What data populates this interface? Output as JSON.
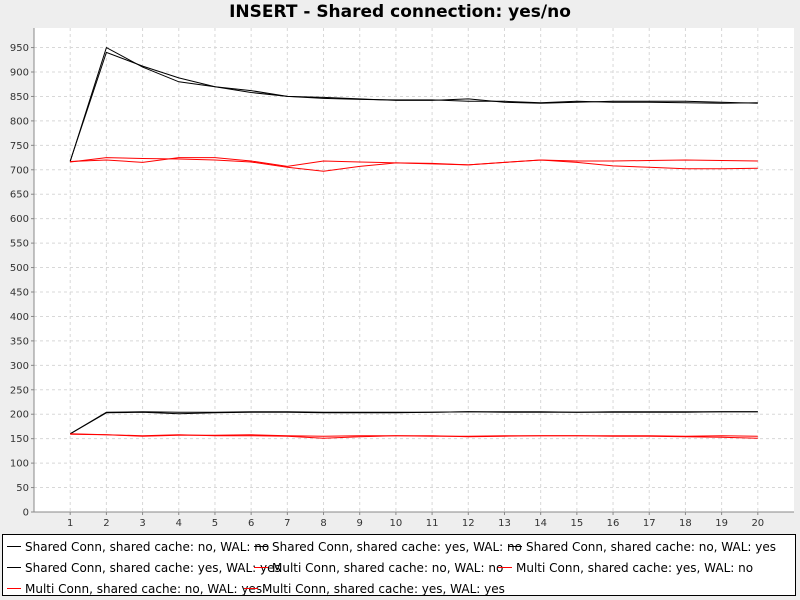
{
  "chart_data": {
    "type": "line",
    "title": "INSERT - Shared connection: yes/no",
    "xlabel": "",
    "ylabel": "",
    "x": [
      1,
      2,
      3,
      4,
      5,
      6,
      7,
      8,
      9,
      10,
      11,
      12,
      13,
      14,
      15,
      16,
      17,
      18,
      19,
      20
    ],
    "xlim": [
      0,
      21
    ],
    "ylim": [
      0,
      990
    ],
    "yticks": [
      0,
      50,
      100,
      150,
      200,
      250,
      300,
      350,
      400,
      450,
      500,
      550,
      600,
      650,
      700,
      750,
      800,
      850,
      900,
      950
    ],
    "grid": true,
    "legend_position": "bottom",
    "series": [
      {
        "name": "Shared Conn, shared cache: no, WAL: no",
        "color": "#000000",
        "values": [
          717,
          950,
          910,
          880,
          870,
          858,
          850,
          848,
          845,
          842,
          842,
          845,
          838,
          836,
          838,
          840,
          840,
          840,
          838,
          836
        ]
      },
      {
        "name": "Shared Conn, shared cache: yes, WAL: no",
        "color": "#000000",
        "values": [
          718,
          940,
          912,
          888,
          870,
          862,
          850,
          846,
          844,
          843,
          843,
          840,
          840,
          837,
          840,
          838,
          838,
          837,
          836,
          837
        ]
      },
      {
        "name": "Shared Conn, shared cache: no, WAL: yes",
        "color": "#000000",
        "values": [
          160,
          203,
          204,
          201,
          203,
          204,
          204,
          203,
          203,
          203,
          204,
          205,
          204,
          204,
          204,
          204,
          204,
          204,
          205,
          205
        ]
      },
      {
        "name": "Shared Conn, shared cache: yes, WAL: yes",
        "color": "#000000",
        "values": [
          160,
          204,
          205,
          204,
          204,
          205,
          205,
          204,
          204,
          204,
          204,
          205,
          205,
          205,
          204,
          205,
          205,
          205,
          205,
          205
        ]
      },
      {
        "name": "Multi Conn, shared cache: no, WAL: no",
        "color": "#ff0000",
        "values": [
          716,
          725,
          723,
          722,
          720,
          716,
          705,
          697,
          707,
          714,
          712,
          710,
          715,
          720,
          715,
          708,
          705,
          702,
          702,
          703
        ]
      },
      {
        "name": "Multi Conn, shared cache: yes, WAL: no",
        "color": "#ff0000",
        "values": [
          717,
          720,
          715,
          725,
          725,
          718,
          707,
          718,
          716,
          714,
          713,
          710,
          715,
          720,
          718,
          718,
          719,
          720,
          719,
          718
        ]
      },
      {
        "name": "Multi Conn, shared cache: no, WAL: yes",
        "color": "#ff0000",
        "values": [
          160,
          158,
          155,
          157,
          157,
          158,
          156,
          155,
          156,
          156,
          155,
          155,
          156,
          156,
          156,
          156,
          156,
          155,
          156,
          155
        ]
      },
      {
        "name": "Multi Conn, shared cache: yes, WAL: yes",
        "color": "#ff0000",
        "values": [
          159,
          158,
          156,
          158,
          156,
          156,
          155,
          151,
          154,
          156,
          156,
          154,
          155,
          156,
          156,
          155,
          155,
          154,
          153,
          151
        ]
      }
    ]
  }
}
